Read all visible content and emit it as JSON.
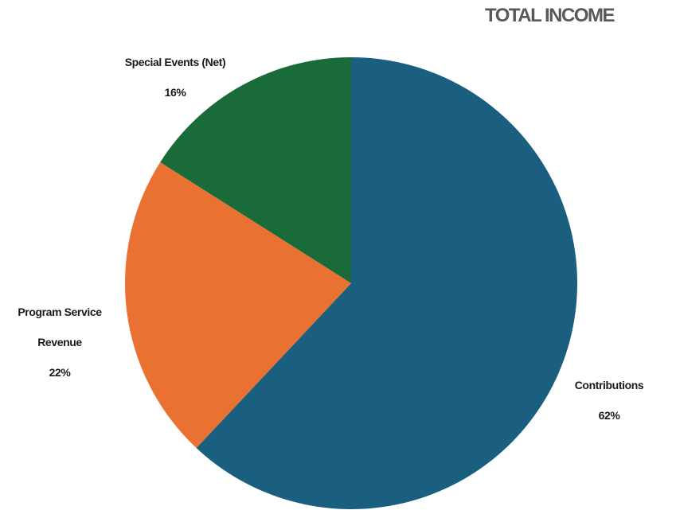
{
  "chart_data": {
    "type": "pie",
    "title": "TOTAL INCOME",
    "categories": [
      "Contributions",
      "Program Service Revenue",
      "Special Events (Net)"
    ],
    "values": [
      62,
      22,
      16
    ],
    "value_labels": [
      "62%",
      "22%",
      "16%"
    ],
    "label_lines": [
      [
        "Contributions"
      ],
      [
        "Program Service",
        "Revenue"
      ],
      [
        "Special Events (Net)"
      ]
    ],
    "colors": [
      "#1a5f80",
      "#e97131",
      "#196b3a"
    ],
    "start_angle": "12 o'clock",
    "direction": "clockwise",
    "legend": "none"
  }
}
